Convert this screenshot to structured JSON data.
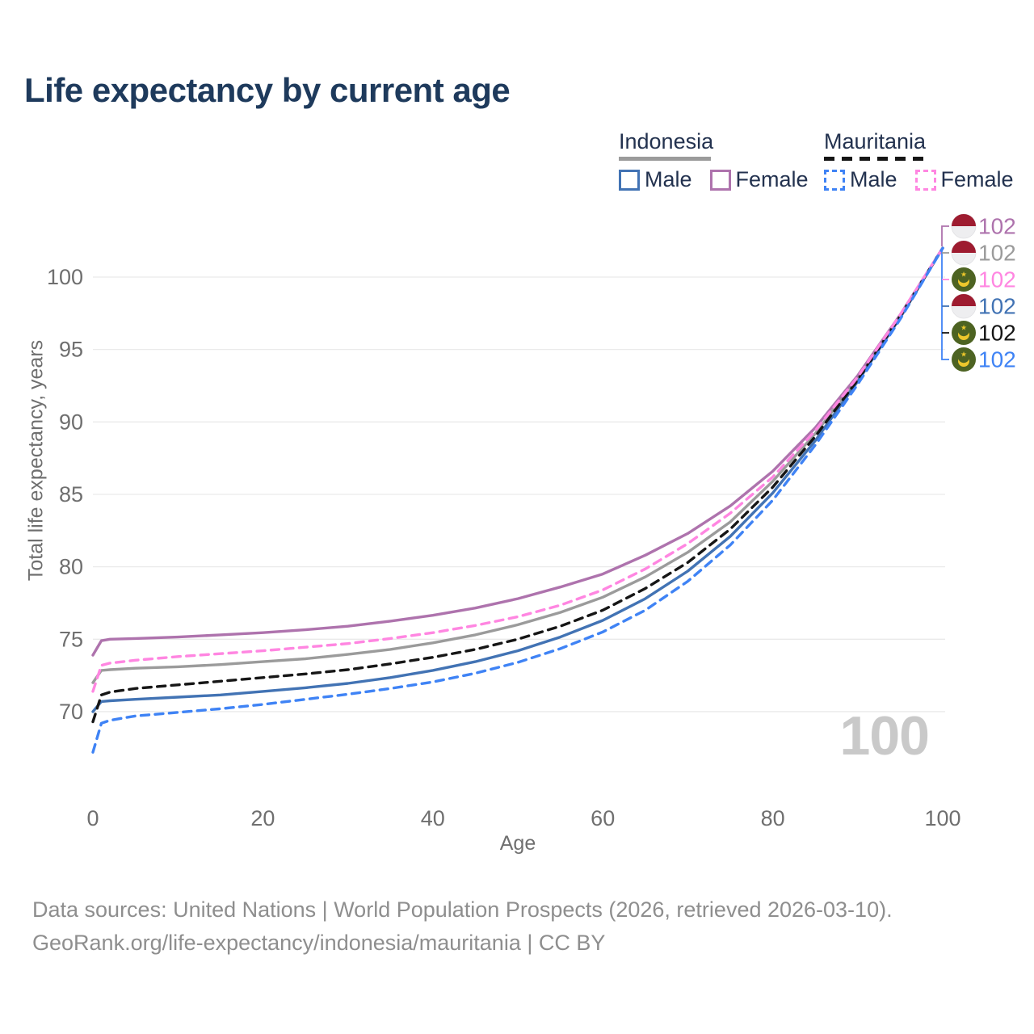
{
  "title": "Life expectancy by current age",
  "watermark": "100",
  "footer": {
    "line1": "Data sources: United Nations | World Population Prospects (2026, retrieved 2026-03-10).",
    "line2": "GeoRank.org/life-expectancy/indonesia/mauritania | CC BY"
  },
  "legend": {
    "groups": [
      {
        "label": "Indonesia",
        "underline_style": "solid",
        "underline_color": "#9b9b9b",
        "items": [
          {
            "label": "Male",
            "color": "#4273b4",
            "dashed": false
          },
          {
            "label": "Female",
            "color": "#ae73ad",
            "dashed": false
          }
        ]
      },
      {
        "label": "Mauritania",
        "underline_style": "dashed",
        "underline_color": "#151515",
        "items": [
          {
            "label": "Male",
            "color": "#3f83f5",
            "dashed": true
          },
          {
            "label": "Female",
            "color": "#ff86e1",
            "dashed": true
          }
        ]
      }
    ]
  },
  "chart_data": {
    "type": "line",
    "title": "Life expectancy by current age",
    "xlabel": "Age",
    "ylabel": "Total life expectancy, years",
    "xlim": [
      0,
      100
    ],
    "ylim": [
      66,
      103
    ],
    "x_ticks": [
      0,
      20,
      40,
      60,
      80,
      100
    ],
    "y_ticks": [
      70,
      75,
      80,
      85,
      90,
      95,
      100
    ],
    "grid": "horizontal",
    "gridline_color": "#eaeaea",
    "tick_color": "#6f6f6f",
    "legend_position": "top-right",
    "current_age_indicator": "100",
    "series": [
      {
        "id": "idn_all",
        "name": "Indonesia Both sexes",
        "country": "Indonesia",
        "sex": "Both",
        "color": "#9b9b9b",
        "dashed": false,
        "flag": "indonesia",
        "end_label": "102",
        "annotation_row": 1,
        "points": [
          [
            0,
            72.0
          ],
          [
            1,
            72.85
          ],
          [
            2,
            72.9
          ],
          [
            5,
            73.0
          ],
          [
            10,
            73.1
          ],
          [
            15,
            73.25
          ],
          [
            20,
            73.45
          ],
          [
            25,
            73.65
          ],
          [
            30,
            73.95
          ],
          [
            35,
            74.3
          ],
          [
            40,
            74.75
          ],
          [
            45,
            75.3
          ],
          [
            50,
            76.0
          ],
          [
            55,
            76.85
          ],
          [
            60,
            77.9
          ],
          [
            65,
            79.3
          ],
          [
            70,
            81.0
          ],
          [
            75,
            83.1
          ],
          [
            80,
            85.9
          ],
          [
            85,
            89.2
          ],
          [
            90,
            93.0
          ],
          [
            95,
            97.3
          ],
          [
            100,
            102
          ]
        ]
      },
      {
        "id": "idn_female",
        "name": "Indonesia Female",
        "country": "Indonesia",
        "sex": "Female",
        "color": "#ae73ad",
        "dashed": false,
        "flag": "indonesia",
        "end_label": "102",
        "annotation_row": 0,
        "points": [
          [
            0,
            73.9
          ],
          [
            1,
            74.9
          ],
          [
            2,
            75.0
          ],
          [
            5,
            75.05
          ],
          [
            10,
            75.15
          ],
          [
            15,
            75.3
          ],
          [
            20,
            75.45
          ],
          [
            25,
            75.65
          ],
          [
            30,
            75.9
          ],
          [
            35,
            76.25
          ],
          [
            40,
            76.65
          ],
          [
            45,
            77.15
          ],
          [
            50,
            77.8
          ],
          [
            55,
            78.6
          ],
          [
            60,
            79.5
          ],
          [
            65,
            80.8
          ],
          [
            70,
            82.3
          ],
          [
            75,
            84.2
          ],
          [
            80,
            86.6
          ],
          [
            85,
            89.6
          ],
          [
            90,
            93.2
          ],
          [
            95,
            97.4
          ],
          [
            100,
            102
          ]
        ]
      },
      {
        "id": "idn_male",
        "name": "Indonesia Male",
        "country": "Indonesia",
        "sex": "Male",
        "color": "#4273b4",
        "dashed": false,
        "flag": "indonesia",
        "end_label": "102",
        "annotation_row": 3,
        "points": [
          [
            0,
            70.0
          ],
          [
            1,
            70.7
          ],
          [
            2,
            70.75
          ],
          [
            5,
            70.85
          ],
          [
            10,
            71.0
          ],
          [
            15,
            71.15
          ],
          [
            20,
            71.4
          ],
          [
            25,
            71.65
          ],
          [
            30,
            71.95
          ],
          [
            35,
            72.35
          ],
          [
            40,
            72.85
          ],
          [
            45,
            73.45
          ],
          [
            50,
            74.2
          ],
          [
            55,
            75.15
          ],
          [
            60,
            76.3
          ],
          [
            65,
            77.8
          ],
          [
            70,
            79.7
          ],
          [
            75,
            82.1
          ],
          [
            80,
            85.1
          ],
          [
            85,
            88.7
          ],
          [
            90,
            92.8
          ],
          [
            95,
            97.2
          ],
          [
            100,
            102
          ]
        ]
      },
      {
        "id": "mrt_all",
        "name": "Mauritania Both sexes",
        "country": "Mauritania",
        "sex": "Both",
        "color": "#161616",
        "dashed": true,
        "flag": "mauritania",
        "end_label": "102",
        "annotation_row": 4,
        "points": [
          [
            0,
            69.3
          ],
          [
            1,
            71.15
          ],
          [
            2,
            71.35
          ],
          [
            5,
            71.6
          ],
          [
            10,
            71.85
          ],
          [
            15,
            72.1
          ],
          [
            20,
            72.35
          ],
          [
            25,
            72.6
          ],
          [
            30,
            72.9
          ],
          [
            35,
            73.3
          ],
          [
            40,
            73.75
          ],
          [
            45,
            74.3
          ],
          [
            50,
            75.0
          ],
          [
            55,
            75.9
          ],
          [
            60,
            77.0
          ],
          [
            65,
            78.5
          ],
          [
            70,
            80.3
          ],
          [
            75,
            82.6
          ],
          [
            80,
            85.5
          ],
          [
            85,
            89.0
          ],
          [
            90,
            92.9
          ],
          [
            95,
            97.3
          ],
          [
            100,
            102
          ]
        ]
      },
      {
        "id": "mrt_female",
        "name": "Mauritania Female",
        "country": "Mauritania",
        "sex": "Female",
        "color": "#ff86e1",
        "dashed": true,
        "flag": "mauritania",
        "end_label": "102",
        "annotation_row": 2,
        "points": [
          [
            0,
            71.4
          ],
          [
            1,
            73.2
          ],
          [
            2,
            73.35
          ],
          [
            5,
            73.55
          ],
          [
            10,
            73.8
          ],
          [
            15,
            74.0
          ],
          [
            20,
            74.2
          ],
          [
            25,
            74.45
          ],
          [
            30,
            74.7
          ],
          [
            35,
            75.05
          ],
          [
            40,
            75.45
          ],
          [
            45,
            75.95
          ],
          [
            50,
            76.55
          ],
          [
            55,
            77.35
          ],
          [
            60,
            78.4
          ],
          [
            65,
            79.85
          ],
          [
            70,
            81.6
          ],
          [
            75,
            83.7
          ],
          [
            80,
            86.2
          ],
          [
            85,
            89.4
          ],
          [
            90,
            93.1
          ],
          [
            95,
            97.4
          ],
          [
            100,
            102
          ]
        ]
      },
      {
        "id": "mrt_male",
        "name": "Mauritania Male",
        "country": "Mauritania",
        "sex": "Male",
        "color": "#3f83f5",
        "dashed": true,
        "flag": "mauritania",
        "end_label": "102",
        "annotation_row": 5,
        "points": [
          [
            0,
            67.2
          ],
          [
            1,
            69.2
          ],
          [
            2,
            69.4
          ],
          [
            5,
            69.7
          ],
          [
            10,
            69.95
          ],
          [
            15,
            70.2
          ],
          [
            20,
            70.5
          ],
          [
            25,
            70.85
          ],
          [
            30,
            71.2
          ],
          [
            35,
            71.6
          ],
          [
            40,
            72.05
          ],
          [
            45,
            72.65
          ],
          [
            50,
            73.4
          ],
          [
            55,
            74.35
          ],
          [
            60,
            75.5
          ],
          [
            65,
            77.0
          ],
          [
            70,
            79.0
          ],
          [
            75,
            81.5
          ],
          [
            80,
            84.6
          ],
          [
            85,
            88.4
          ],
          [
            90,
            92.6
          ],
          [
            95,
            97.1
          ],
          [
            100,
            102
          ]
        ]
      }
    ],
    "flag_colors": {
      "indonesia_red": "#9e1c30",
      "indonesia_white": "#eeeef0",
      "mauritania_green": "#4d6322",
      "mauritania_gold": "#edc72c"
    }
  }
}
